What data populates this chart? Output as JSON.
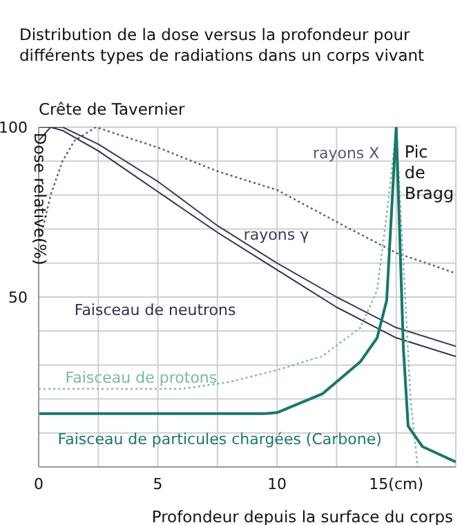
{
  "chart_data": {
    "type": "line",
    "title": "Distribution de la dose versus la profondeur pour différents types de radiations dans un corps vivant",
    "xlabel": "Profondeur depuis la surface du corps",
    "ylabel": "Dose relative(%)",
    "xlim": [
      0,
      17.5
    ],
    "xticks": [
      0,
      {
        "value": 2.5,
        "label": null
      },
      5,
      {
        "value": 7.5,
        "label": null
      },
      10,
      {
        "value": 12.5,
        "label": null
      },
      {
        "value": 15,
        "label": "15(cm)"
      }
    ],
    "ylim": [
      0,
      100
    ],
    "yticks": [
      {
        "value": 0,
        "label": null
      },
      {
        "value": 10,
        "label": null
      },
      {
        "value": 20,
        "label": null
      },
      {
        "value": 30,
        "label": null
      },
      {
        "value": 40,
        "label": null
      },
      50,
      {
        "value": 60,
        "label": null
      },
      {
        "value": 70,
        "label": null
      },
      {
        "value": 80,
        "label": null
      },
      {
        "value": 90,
        "label": null
      },
      100
    ],
    "grid": true,
    "legend": false,
    "marker": "none",
    "annotations": [
      "Crête de Tavernier",
      {
        "text": "Pic de Bragg",
        "x": 15,
        "y": 100
      }
    ],
    "series": [
      {
        "name": "rayons X",
        "color": "#55557a",
        "line_style": "dotted",
        "x": [
          0,
          0.5,
          1,
          1.5,
          2.4,
          5,
          7.5,
          10,
          12.8,
          15,
          17.5
        ],
        "values": [
          65,
          80,
          90,
          96,
          100,
          94,
          87,
          81.5,
          71,
          63,
          57
        ]
      },
      {
        "name": "rayons γ",
        "color": "#3a3a5c",
        "line_style": "solid",
        "x": [
          0,
          0.5,
          1,
          2.5,
          5,
          7.5,
          10,
          12.5,
          15,
          17.5
        ],
        "values": [
          96,
          100,
          100,
          95,
          84,
          71,
          60,
          50,
          41,
          35.5
        ]
      },
      {
        "name": "Faisceau de neutrons",
        "color": "#2f2f55",
        "line_style": "solid",
        "x": [
          0,
          0.5,
          1,
          2.5,
          5,
          7.5,
          10,
          12.5,
          15,
          17.5
        ],
        "values": [
          100,
          100,
          99,
          93,
          81,
          69,
          58,
          47,
          38,
          32.5
        ]
      },
      {
        "name": "Faisceau de protons",
        "color": "#7ab8a8",
        "line_style": "dotted",
        "x": [
          0,
          3,
          6,
          8,
          10,
          11.9,
          13.5,
          14.2,
          14.7,
          15,
          15.3,
          15.6,
          15.9
        ],
        "values": [
          23,
          23,
          23,
          25,
          28.5,
          32.6,
          41,
          52,
          80,
          100,
          60,
          20,
          0
        ]
      },
      {
        "name": "Faisceau de particules chargées (Carbone)",
        "color": "#17786a",
        "line_style": "solid",
        "x": [
          0,
          5,
          9.5,
          10,
          11.9,
          13.5,
          14.2,
          14.6,
          15,
          15.3,
          15.5,
          16.1,
          17.5
        ],
        "values": [
          15.7,
          15.7,
          15.7,
          16,
          21.5,
          31,
          38,
          49,
          100,
          35,
          12,
          6,
          1.5
        ]
      }
    ]
  }
}
